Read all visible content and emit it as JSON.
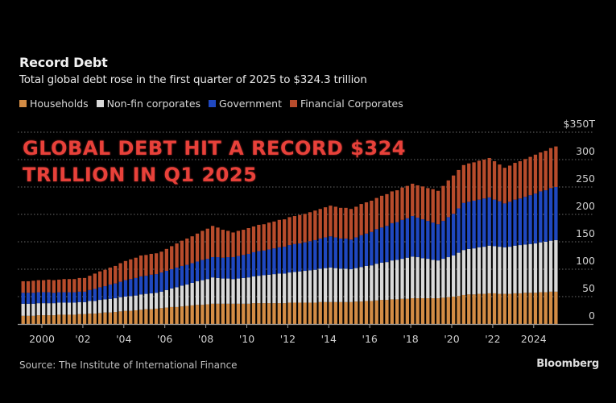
{
  "header": {
    "title": "Record Debt",
    "subtitle": "Total global debt rose in the first quarter of 2025 to $324.3 trillion"
  },
  "legend": [
    {
      "label": "Households",
      "color": "#d38c45"
    },
    {
      "label": "Non-fin corporates",
      "color": "#d9d9d9"
    },
    {
      "label": "Government",
      "color": "#1f48c0"
    },
    {
      "label": "Financial Corporates",
      "color": "#b84c2c"
    }
  ],
  "overlay": {
    "line1": "GLOBAL DEBT HIT A RECORD $324",
    "line2": "TRILLION IN Q1 2025"
  },
  "footer": {
    "source": "Source: The Institute of International Finance",
    "brand": "Bloomberg"
  },
  "chart_data": {
    "type": "bar",
    "stacked": true,
    "title": "Record Debt",
    "subtitle": "Total global debt rose in the first quarter of 2025 to $324.3 trillion",
    "xlabel": "",
    "ylabel": "",
    "y_unit": "$ trillion",
    "ylim": [
      0,
      350
    ],
    "yticks": [
      "0",
      "50",
      "100",
      "150",
      "200",
      "250",
      "300",
      "$350T"
    ],
    "y_axis_position": "right",
    "grid": "horizontal dotted",
    "legend_position": "top-left",
    "x_tick_labels": [
      "2000",
      "'02",
      "'04",
      "'06",
      "'08",
      "'10",
      "'12",
      "'14",
      "'16",
      "'18",
      "'20",
      "'22",
      "2024"
    ],
    "x_range": "1999 Q1 - 2025 Q1 (quarterly)",
    "annotation": "GLOBAL DEBT HIT A RECORD $324 TRILLION IN Q1 2025",
    "final_total": 324.3,
    "series": [
      {
        "name": "Households",
        "color": "#d38c45",
        "values": [
          15,
          15,
          15,
          16,
          16,
          16,
          16,
          17,
          17,
          17,
          17,
          18,
          18,
          19,
          19,
          20,
          21,
          21,
          22,
          23,
          24,
          24,
          25,
          26,
          27,
          27,
          28,
          29,
          30,
          31,
          31,
          32,
          33,
          34,
          35,
          35,
          36,
          37,
          37,
          37,
          37,
          37,
          37,
          37,
          37,
          38,
          38,
          38,
          38,
          38,
          38,
          38,
          39,
          39,
          39,
          39,
          39,
          39,
          40,
          40,
          40,
          40,
          40,
          40,
          40,
          41,
          41,
          42,
          42,
          43,
          44,
          44,
          45,
          45,
          46,
          46,
          47,
          47,
          47,
          47,
          47,
          47,
          48,
          49,
          50,
          51,
          53,
          54,
          54,
          55,
          55,
          56,
          56,
          55,
          55,
          55,
          56,
          56,
          57,
          57,
          57,
          58,
          58,
          59,
          59
        ]
      },
      {
        "name": "Non-fin corporates",
        "color": "#d9d9d9",
        "values": [
          22,
          22,
          22,
          22,
          22,
          22,
          22,
          22,
          22,
          22,
          22,
          22,
          22,
          23,
          23,
          24,
          24,
          25,
          25,
          26,
          26,
          27,
          27,
          28,
          28,
          29,
          29,
          30,
          32,
          34,
          36,
          38,
          39,
          41,
          43,
          45,
          46,
          48,
          47,
          46,
          46,
          45,
          46,
          47,
          48,
          49,
          50,
          51,
          52,
          53,
          54,
          54,
          55,
          56,
          57,
          58,
          59,
          60,
          61,
          62,
          63,
          62,
          61,
          61,
          60,
          61,
          63,
          64,
          65,
          67,
          68,
          69,
          71,
          72,
          73,
          75,
          76,
          75,
          73,
          72,
          70,
          69,
          71,
          73,
          75,
          79,
          82,
          83,
          84,
          85,
          86,
          87,
          86,
          86,
          85,
          86,
          87,
          88,
          88,
          89,
          90,
          91,
          92,
          93,
          94
        ]
      },
      {
        "name": "Government",
        "color": "#1f48c0",
        "values": [
          20,
          20,
          20,
          20,
          20,
          20,
          19,
          19,
          19,
          19,
          19,
          19,
          19,
          20,
          22,
          23,
          24,
          26,
          27,
          28,
          30,
          31,
          32,
          33,
          33,
          34,
          34,
          35,
          35,
          35,
          36,
          36,
          36,
          36,
          36,
          37,
          37,
          37,
          38,
          38,
          39,
          40,
          41,
          42,
          43,
          44,
          45,
          45,
          46,
          47,
          48,
          49,
          50,
          51,
          51,
          52,
          53,
          54,
          55,
          56,
          57,
          56,
          55,
          55,
          54,
          56,
          58,
          59,
          61,
          63,
          64,
          66,
          68,
          69,
          71,
          72,
          74,
          72,
          71,
          69,
          68,
          66,
          69,
          73,
          76,
          81,
          86,
          86,
          87,
          87,
          88,
          88,
          85,
          83,
          80,
          82,
          84,
          85,
          87,
          89,
          91,
          93,
          94,
          96,
          97
        ]
      },
      {
        "name": "Financial Corporates",
        "color": "#b84c2c",
        "values": [
          21,
          21,
          22,
          22,
          22,
          23,
          23,
          23,
          24,
          24,
          24,
          25,
          25,
          26,
          28,
          29,
          30,
          31,
          32,
          34,
          35,
          36,
          37,
          38,
          38,
          38,
          38,
          38,
          40,
          42,
          44,
          46,
          48,
          49,
          51,
          53,
          55,
          57,
          54,
          51,
          48,
          45,
          46,
          46,
          47,
          47,
          48,
          48,
          49,
          49,
          50,
          50,
          51,
          51,
          52,
          52,
          53,
          54,
          54,
          55,
          56,
          56,
          56,
          56,
          56,
          56,
          57,
          57,
          57,
          57,
          58,
          58,
          58,
          58,
          59,
          59,
          59,
          59,
          60,
          60,
          61,
          61,
          64,
          67,
          70,
          70,
          69,
          70,
          70,
          71,
          71,
          72,
          70,
          67,
          65,
          66,
          67,
          68,
          69,
          70,
          71,
          71,
          72,
          73,
          74
        ]
      }
    ]
  }
}
